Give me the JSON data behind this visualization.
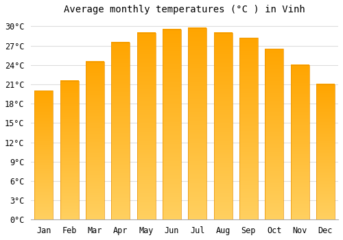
{
  "title": "Average monthly temperatures (°C ) in Vinh",
  "months": [
    "Jan",
    "Feb",
    "Mar",
    "Apr",
    "May",
    "Jun",
    "Jul",
    "Aug",
    "Sep",
    "Oct",
    "Nov",
    "Dec"
  ],
  "temperatures": [
    20.0,
    21.5,
    24.5,
    27.5,
    29.0,
    29.5,
    29.7,
    29.0,
    28.2,
    26.5,
    24.0,
    21.0
  ],
  "bar_color_main": "#FFA500",
  "bar_color_light": "#FFD060",
  "bar_edge_color": "#E89000",
  "background_color": "#FFFFFF",
  "grid_color": "#DDDDDD",
  "ylim": [
    0,
    31
  ],
  "ytick_step": 3,
  "title_fontsize": 10,
  "tick_fontsize": 8.5,
  "font_family": "monospace"
}
